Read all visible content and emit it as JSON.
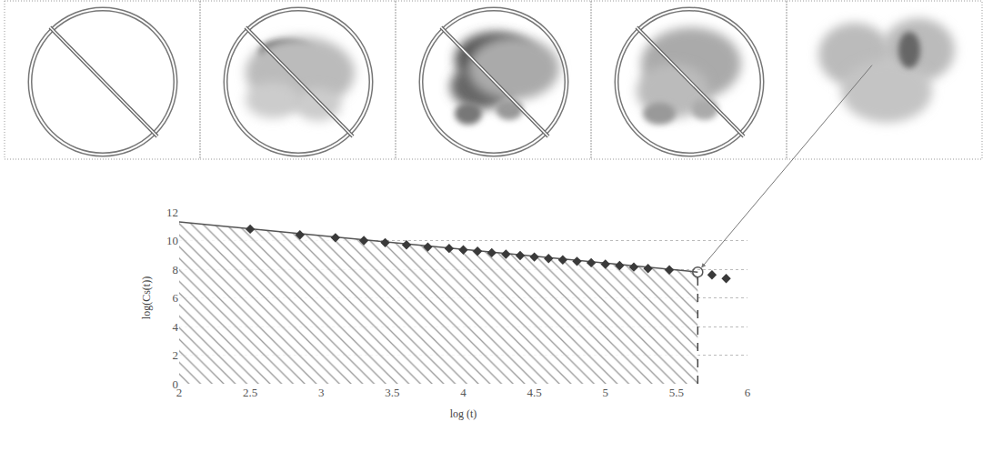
{
  "chart_data": {
    "type": "scatter",
    "x_label": "log (t)",
    "y_label": "log(Cs(t))",
    "xlim": [
      2,
      6
    ],
    "xticks": [
      2,
      2.5,
      3,
      3.5,
      4,
      4.5,
      5,
      5.5,
      6
    ],
    "ylim": [
      0,
      12
    ],
    "yticks": [
      0,
      2,
      4,
      6,
      8,
      10,
      12
    ],
    "grid": true,
    "series": [
      {
        "type": "scatter",
        "marker": "diamond",
        "color": "#3a3a3a",
        "x": [
          2.5,
          2.85,
          3.1,
          3.3,
          3.45,
          3.6,
          3.75,
          3.9,
          4.0,
          4.1,
          4.2,
          4.3,
          4.4,
          4.5,
          4.6,
          4.7,
          4.8,
          4.9,
          5.0,
          5.1,
          5.2,
          5.3,
          5.45,
          5.75,
          5.85
        ],
        "values": [
          10.8,
          10.4,
          10.2,
          10.0,
          9.85,
          9.7,
          9.55,
          9.45,
          9.35,
          9.25,
          9.15,
          9.05,
          8.95,
          8.85,
          8.75,
          8.65,
          8.55,
          8.45,
          8.35,
          8.25,
          8.15,
          8.05,
          7.95,
          7.6,
          7.35
        ]
      },
      {
        "type": "area",
        "marker": "none",
        "line_style": "solid",
        "color": "#555555",
        "x": [
          2,
          5.65
        ],
        "values": [
          11.3,
          7.8
        ]
      },
      {
        "type": "scatter",
        "marker": "circle-open",
        "color": "#555555",
        "x": [
          5.65
        ],
        "values": [
          7.8
        ]
      }
    ]
  }
}
